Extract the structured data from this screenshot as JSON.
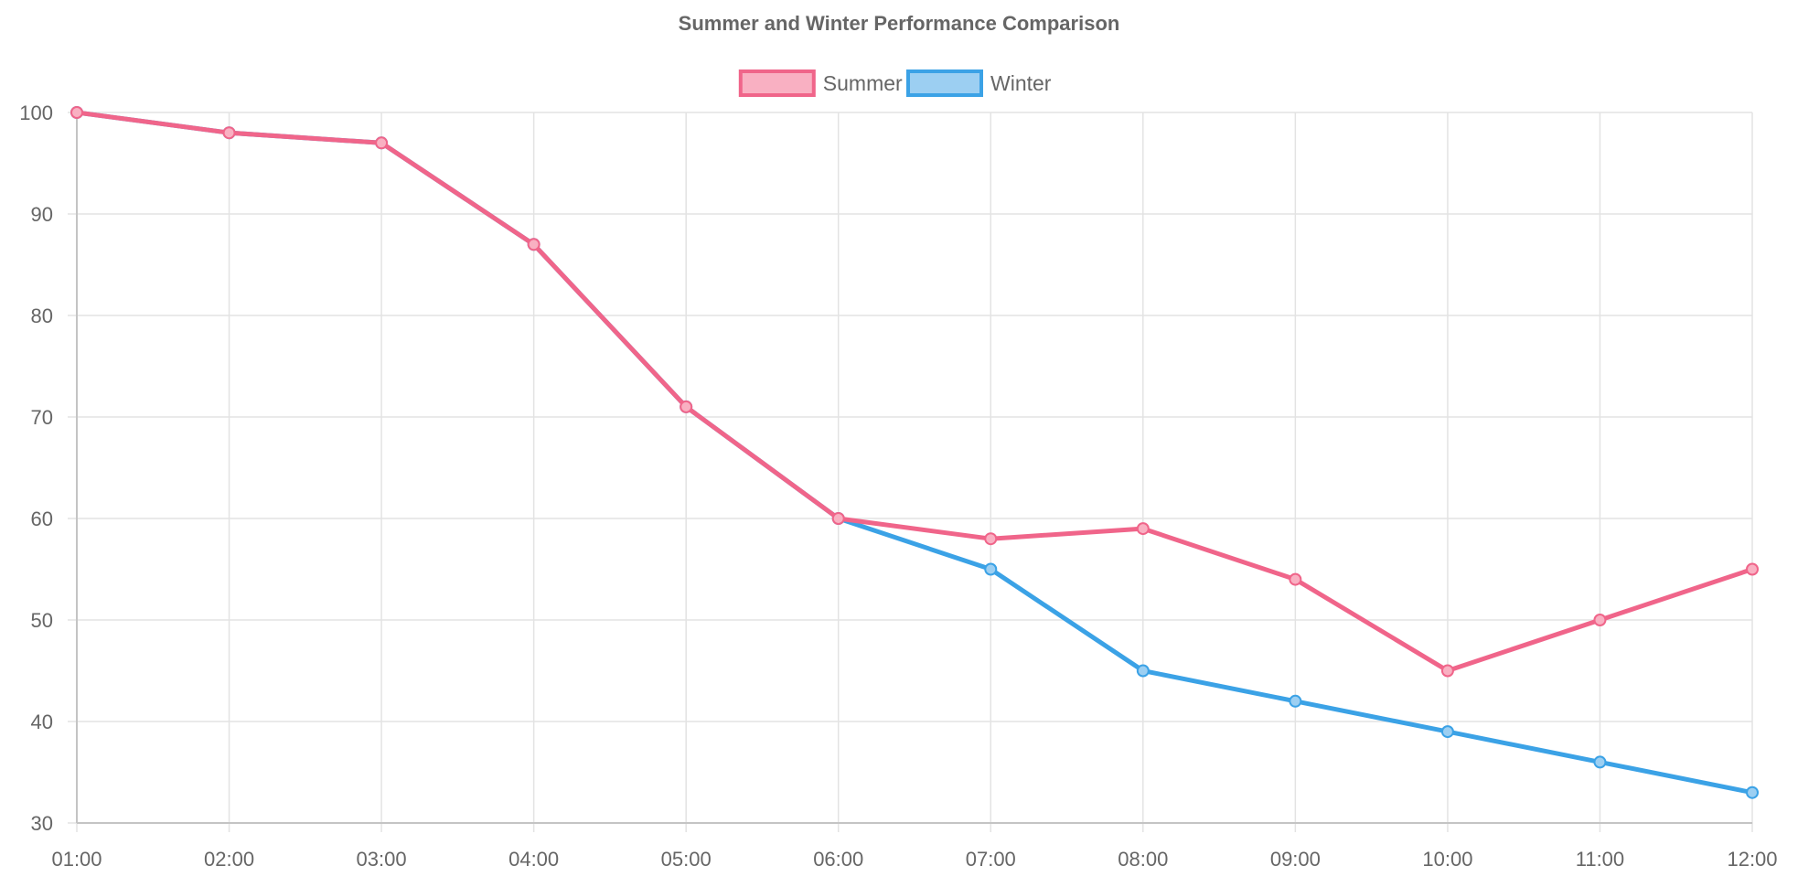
{
  "chart_data": {
    "type": "line",
    "title": "Summer and Winter Performance Comparison",
    "categories": [
      "01:00",
      "02:00",
      "03:00",
      "04:00",
      "05:00",
      "06:00",
      "07:00",
      "08:00",
      "09:00",
      "10:00",
      "11:00",
      "12:00"
    ],
    "series": [
      {
        "name": "Summer",
        "values": [
          100,
          98,
          97,
          87,
          71,
          60,
          58,
          59,
          54,
          45,
          50,
          55
        ],
        "color": "#f0658a",
        "fill": "#f9b0c2"
      },
      {
        "name": "Winter",
        "values": [
          100,
          98,
          97,
          87,
          71,
          60,
          55,
          45,
          42,
          39,
          36,
          33
        ],
        "color": "#3ba2e6",
        "fill": "#9ccff2"
      }
    ],
    "y_ticks": [
      "100",
      "90",
      "80",
      "70",
      "60",
      "50",
      "40",
      "30"
    ],
    "ylim": [
      30,
      100
    ],
    "grid": true,
    "legend_position": "top"
  }
}
